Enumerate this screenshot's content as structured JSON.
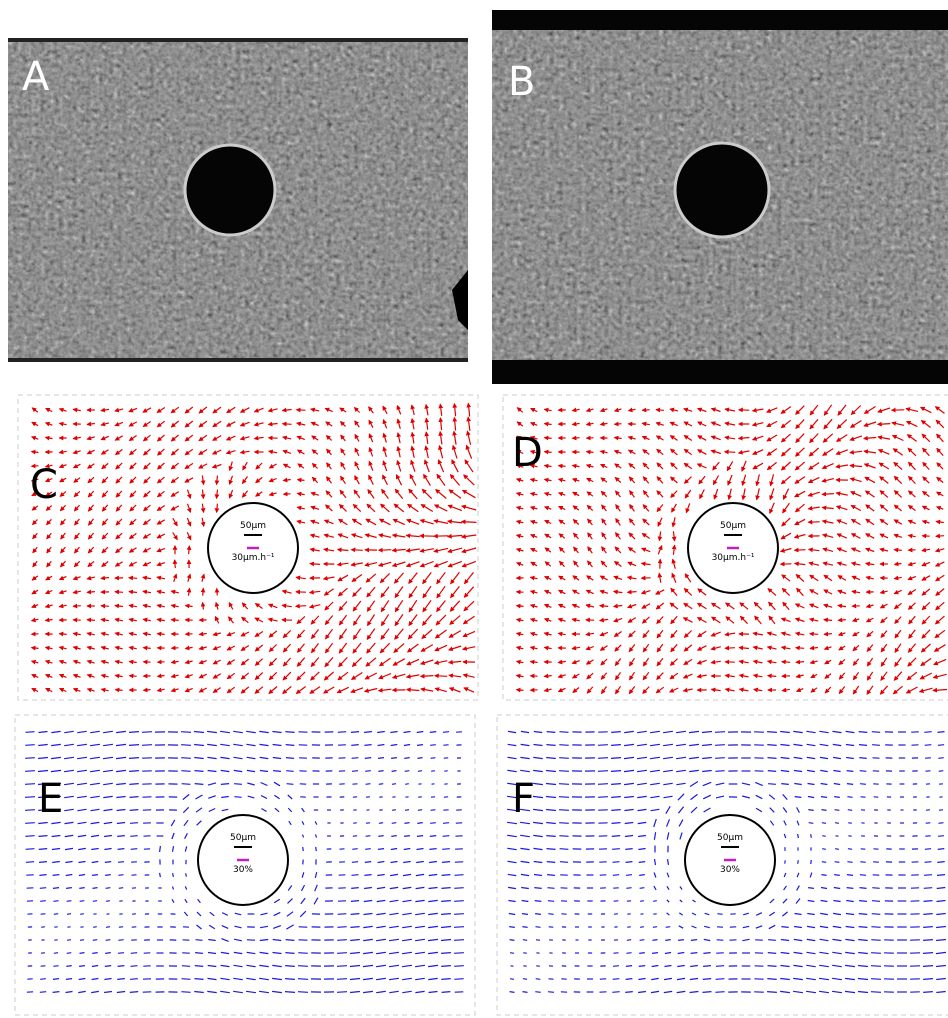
{
  "panels": [
    {
      "label": "A"
    },
    {
      "label": "B"
    },
    {
      "label": "C",
      "scale_length": "50μm",
      "scale_speed": "30μm.h⁻¹"
    },
    {
      "label": "D",
      "scale_length": "50μm",
      "scale_speed": "30μm.h⁻¹"
    },
    {
      "label": "E",
      "scale_length": "50μm",
      "scale_strain": "30%"
    },
    {
      "label": "F",
      "scale_length": "50μm",
      "scale_strain": "30%"
    }
  ]
}
